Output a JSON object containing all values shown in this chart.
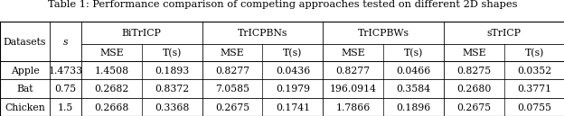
{
  "title": "Table 1: Performance comparison of competing approaches tested on different 2D shapes",
  "col_groups": [
    "BiTrICP",
    "TrICPBNs",
    "TrICPBWs",
    "sTrICP"
  ],
  "sub_cols": [
    "MSE",
    "T(s)"
  ],
  "row_headers": [
    "Datasets",
    "Apple",
    "Bat",
    "Chicken"
  ],
  "s_values": [
    "s",
    "1.4733",
    "0.75",
    "1.5"
  ],
  "data_rows": [
    [
      "1.4508",
      "0.1893",
      "0.8277",
      "0.0436",
      "0.8277",
      "0.0466",
      "0.8275",
      "0.0352"
    ],
    [
      "0.2682",
      "0.8372",
      "7.0585",
      "0.1979",
      "196.0914",
      "0.3584",
      "0.2680",
      "0.3771"
    ],
    [
      "0.2668",
      "0.3368",
      "0.2675",
      "0.1741",
      "1.7866",
      "0.1896",
      "0.2675",
      "0.0755"
    ]
  ],
  "bg_color": "#ffffff",
  "line_color": "#000000",
  "title_fontsize": 8.2,
  "cell_fontsize": 7.8
}
